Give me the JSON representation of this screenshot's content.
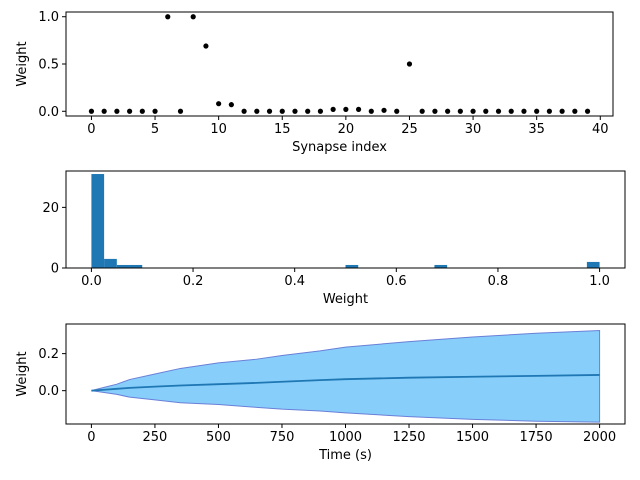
{
  "colors": {
    "points": "#000000",
    "bars": "#1f77b4",
    "mean_line": "#1f77b4",
    "band_fill": "#87cefa",
    "band_edge": "#6a7fd8"
  },
  "chart_data": [
    {
      "type": "scatter",
      "xlabel": "Synapse index",
      "ylabel": "Weight",
      "xlim": [
        -2,
        41
      ],
      "ylim": [
        -0.05,
        1.05
      ],
      "xticks": [
        0,
        5,
        10,
        15,
        20,
        25,
        30,
        35,
        40
      ],
      "yticks": [
        0.0,
        0.5,
        1.0
      ],
      "xtick_labels": [
        "0",
        "5",
        "10",
        "15",
        "20",
        "25",
        "30",
        "35",
        "40"
      ],
      "ytick_labels": [
        "0.0",
        "0.5",
        "1.0"
      ],
      "x": [
        0,
        1,
        2,
        3,
        4,
        5,
        6,
        7,
        8,
        9,
        10,
        11,
        12,
        13,
        14,
        15,
        16,
        17,
        18,
        19,
        20,
        21,
        22,
        23,
        24,
        25,
        26,
        27,
        28,
        29,
        30,
        31,
        32,
        33,
        34,
        35,
        36,
        37,
        38,
        39
      ],
      "y": [
        0,
        0,
        0,
        0,
        0,
        0,
        1.0,
        0,
        1.0,
        0.69,
        0.08,
        0.07,
        0,
        0,
        0,
        0,
        0,
        0,
        0,
        0.02,
        0.02,
        0.02,
        0,
        0.01,
        0,
        0.5,
        0,
        0,
        0,
        0,
        0,
        0,
        0,
        0,
        0,
        0,
        0,
        0,
        0,
        0
      ],
      "grid": false
    },
    {
      "type": "bar",
      "subtype": "histogram",
      "xlabel": "Weight",
      "ylabel": "",
      "xlim": [
        -0.05,
        1.05
      ],
      "ylim": [
        0,
        32
      ],
      "xticks": [
        0.0,
        0.2,
        0.4,
        0.6,
        0.8,
        1.0
      ],
      "yticks": [
        0,
        20
      ],
      "xtick_labels": [
        "0.0",
        "0.2",
        "0.4",
        "0.6",
        "0.8",
        "1.0"
      ],
      "ytick_labels": [
        "0",
        "20"
      ],
      "bin_width": 0.025,
      "bins": [
        {
          "start": 0.0,
          "count": 31
        },
        {
          "start": 0.025,
          "count": 3
        },
        {
          "start": 0.05,
          "count": 1
        },
        {
          "start": 0.075,
          "count": 1
        },
        {
          "start": 0.5,
          "count": 1
        },
        {
          "start": 0.675,
          "count": 1
        },
        {
          "start": 0.975,
          "count": 2
        }
      ],
      "grid": false
    },
    {
      "type": "area",
      "xlabel": "Time (s)",
      "ylabel": "Weight",
      "xlim": [
        -100,
        2100
      ],
      "ylim": [
        -0.18,
        0.36
      ],
      "xticks": [
        0,
        250,
        500,
        750,
        1000,
        1250,
        1500,
        1750,
        2000
      ],
      "yticks": [
        0.0,
        0.2
      ],
      "xtick_labels": [
        "0",
        "250",
        "500",
        "750",
        "1000",
        "1250",
        "1500",
        "1750",
        "2000"
      ],
      "ytick_labels": [
        "0.0",
        "0.2"
      ],
      "x": [
        0,
        50,
        100,
        150,
        250,
        350,
        500,
        650,
        750,
        900,
        1000,
        1250,
        1500,
        1750,
        2000
      ],
      "mean": [
        0.0,
        0.005,
        0.01,
        0.015,
        0.022,
        0.028,
        0.035,
        0.042,
        0.048,
        0.057,
        0.062,
        0.07,
        0.075,
        0.08,
        0.085
      ],
      "upper": [
        0.0,
        0.018,
        0.035,
        0.06,
        0.09,
        0.12,
        0.15,
        0.17,
        0.19,
        0.215,
        0.235,
        0.265,
        0.29,
        0.31,
        0.325
      ],
      "lower": [
        0.0,
        -0.01,
        -0.02,
        -0.035,
        -0.05,
        -0.065,
        -0.075,
        -0.09,
        -0.1,
        -0.11,
        -0.12,
        -0.14,
        -0.155,
        -0.165,
        -0.17
      ],
      "grid": false
    }
  ]
}
